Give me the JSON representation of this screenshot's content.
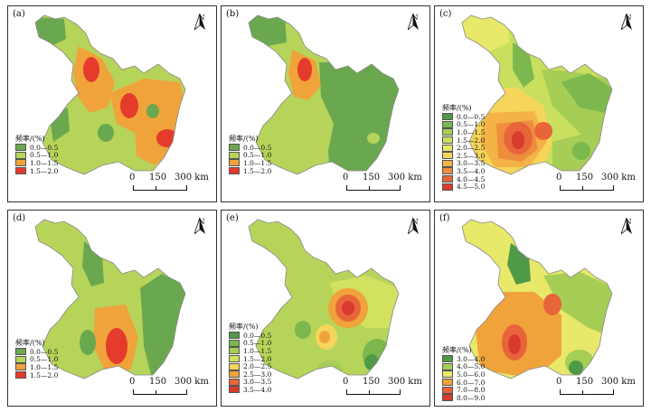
{
  "panels": [
    {
      "label": "(a)",
      "legend": {
        "title": "频率/(%)",
        "entries": [
          {
            "range": "0.0—0.5",
            "color": "#6aa84f"
          },
          {
            "range": "0.5—1.0",
            "color": "#b6d45a"
          },
          {
            "range": "1.0—1.5",
            "color": "#f0a33a"
          },
          {
            "range": "1.5—2.0",
            "color": "#e53b2c"
          }
        ]
      },
      "scale": [
        "0",
        "150",
        "300 km"
      ],
      "north": "N"
    },
    {
      "label": "(b)",
      "legend": {
        "title": "频率/(%)",
        "entries": [
          {
            "range": "0.0—0.5",
            "color": "#6aa84f"
          },
          {
            "range": "0.5—1.0",
            "color": "#b6d45a"
          },
          {
            "range": "1.0—1.5",
            "color": "#f0a33a"
          },
          {
            "range": "1.5—2.0",
            "color": "#e53b2c"
          }
        ]
      },
      "scale": [
        "0",
        "150",
        "300 km"
      ],
      "north": "N"
    },
    {
      "label": "(c)",
      "legend": {
        "title": "频率/(%)",
        "entries": [
          {
            "range": "0.0—0.5",
            "color": "#4e9a47"
          },
          {
            "range": "0.5—1.0",
            "color": "#7cb84e"
          },
          {
            "range": "1.0—1.5",
            "color": "#a6cd55"
          },
          {
            "range": "1.5—2.0",
            "color": "#c9df5e"
          },
          {
            "range": "2.0—2.5",
            "color": "#e8e86a"
          },
          {
            "range": "2.5—3.0",
            "color": "#f5d55a"
          },
          {
            "range": "3.0—3.5",
            "color": "#f3b347"
          },
          {
            "range": "3.5—4.0",
            "color": "#ee8d3c"
          },
          {
            "range": "4.0—4.5",
            "color": "#e8643a"
          },
          {
            "range": "4.5—5.0",
            "color": "#d93a2e"
          }
        ]
      },
      "scale": [
        "0",
        "150",
        "300 km"
      ],
      "north": "N"
    },
    {
      "label": "(d)",
      "legend": {
        "title": "频率/(%)",
        "entries": [
          {
            "range": "0.0—0.5",
            "color": "#6aa84f"
          },
          {
            "range": "0.5—1.0",
            "color": "#b6d45a"
          },
          {
            "range": "1.0—1.5",
            "color": "#f0a33a"
          },
          {
            "range": "1.5—2.0",
            "color": "#e53b2c"
          }
        ]
      },
      "scale": [
        "0",
        "150",
        "300 km"
      ],
      "north": "N"
    },
    {
      "label": "(e)",
      "legend": {
        "title": "频率/(%)",
        "entries": [
          {
            "range": "0.0—0.5",
            "color": "#4e9a47"
          },
          {
            "range": "0.5—1.0",
            "color": "#7cb84e"
          },
          {
            "range": "1.0—1.5",
            "color": "#a6cd55"
          },
          {
            "range": "1.5—2.0",
            "color": "#d2e160"
          },
          {
            "range": "2.0—2.5",
            "color": "#f5d55a"
          },
          {
            "range": "2.5—3.0",
            "color": "#f0a33a"
          },
          {
            "range": "3.0—3.5",
            "color": "#e8643a"
          },
          {
            "range": "3.5—4.0",
            "color": "#d93a2e"
          }
        ]
      },
      "scale": [
        "0",
        "150",
        "300 km"
      ],
      "north": "N"
    },
    {
      "label": "(f)",
      "legend": {
        "title": "频率/(%)",
        "entries": [
          {
            "range": "3.0—4.0",
            "color": "#4e9a47"
          },
          {
            "range": "4.0—5.0",
            "color": "#a6cd55"
          },
          {
            "range": "5.0—6.0",
            "color": "#e8e86a"
          },
          {
            "range": "6.0—7.0",
            "color": "#f0a33a"
          },
          {
            "range": "7.0—8.0",
            "color": "#e8643a"
          },
          {
            "range": "8.0—9.0",
            "color": "#d93a2e"
          }
        ]
      },
      "scale": [
        "0",
        "150",
        "300 km"
      ],
      "north": "N"
    }
  ],
  "colors": {
    "background_a": "#b6d45a",
    "background_b": "#b6d45a",
    "background_c": "#c9df5e",
    "background_d": "#b6d45a",
    "background_e": "#b6d45a",
    "background_f": "#e8e86a",
    "border": "#333333"
  },
  "icons": [
    "north-arrow-icon"
  ]
}
